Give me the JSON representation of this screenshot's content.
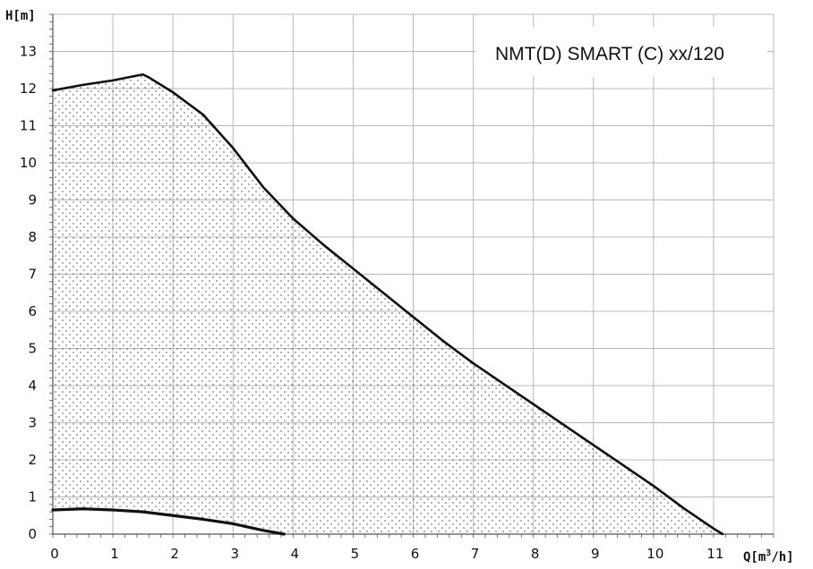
{
  "chart_data": {
    "type": "area",
    "title": "",
    "legend_text": "NMT(D) SMART (C) xx/120",
    "ylabel": "H[m]",
    "xlabel_prefix": "Q[m",
    "xlabel_sup": "3",
    "xlabel_suffix": "/h]",
    "xlim": [
      0,
      12
    ],
    "ylim": [
      0,
      14
    ],
    "xticks": [
      0,
      1,
      2,
      3,
      4,
      5,
      6,
      7,
      8,
      9,
      10,
      11
    ],
    "yticks": [
      0,
      1,
      2,
      3,
      4,
      5,
      6,
      7,
      8,
      9,
      10,
      11,
      12,
      13
    ],
    "grid": true,
    "legend_position": "top-right",
    "series": [
      {
        "role": "max",
        "x": [
          0,
          0.5,
          1.0,
          1.4,
          1.5,
          1.6,
          2.0,
          2.5,
          3.0,
          3.5,
          4.0,
          4.5,
          5.0,
          5.5,
          6.0,
          6.5,
          7.0,
          7.5,
          8.0,
          8.5,
          9.0,
          9.5,
          10.0,
          10.5,
          11.0,
          11.15
        ],
        "y": [
          11.95,
          12.1,
          12.22,
          12.35,
          12.38,
          12.3,
          11.9,
          11.3,
          10.4,
          9.35,
          8.5,
          7.8,
          7.15,
          6.5,
          5.85,
          5.2,
          4.6,
          4.05,
          3.5,
          2.95,
          2.4,
          1.85,
          1.3,
          0.7,
          0.15,
          0.0
        ]
      },
      {
        "role": "min",
        "x": [
          0,
          0.5,
          1.0,
          1.5,
          2.0,
          2.5,
          3.0,
          3.5,
          3.85
        ],
        "y": [
          0.65,
          0.68,
          0.65,
          0.6,
          0.5,
          0.4,
          0.28,
          0.1,
          0.0
        ]
      }
    ],
    "colors": {
      "line": "#111111",
      "grid": "#b8b8b8",
      "axis": "#555555",
      "dots": "#555555"
    }
  }
}
